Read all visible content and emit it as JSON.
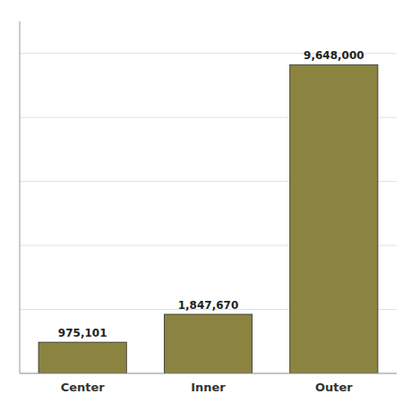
{
  "chart_data": {
    "type": "bar",
    "categories": [
      "Center",
      "Inner",
      "Outer"
    ],
    "values": [
      975101,
      1847670,
      9648000
    ],
    "value_labels": [
      "975,101",
      "1,847,670",
      "9,648,000"
    ],
    "data_labels": true,
    "color": "#8b8340",
    "ylim": [
      0,
      11000000
    ],
    "yticks": [
      0,
      2000000,
      4000000,
      6000000,
      8000000,
      10000000
    ],
    "tick_labels": "x",
    "grid": true
  }
}
